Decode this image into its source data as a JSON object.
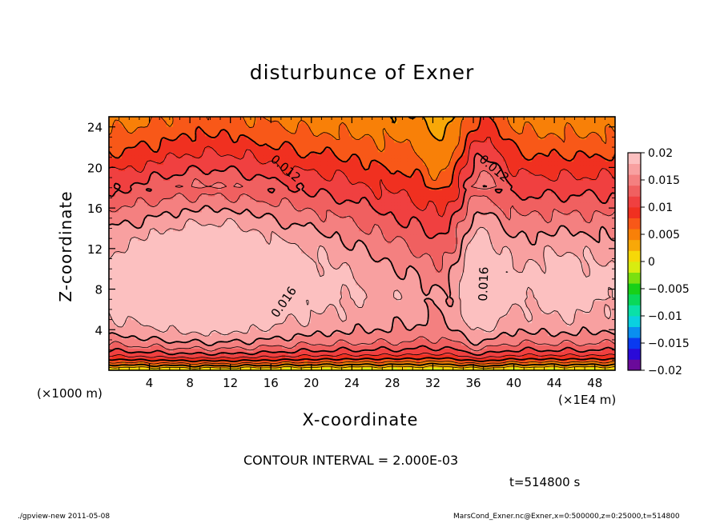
{
  "chart_data": {
    "type": "heatmap",
    "title": "disturbunce of Exner",
    "xlabel": "X-coordinate",
    "ylabel": "Z-coordinate",
    "x_unit_label": "(×1000 m)",
    "x_scale_label": "(×1E4 m)",
    "xlim": [
      0,
      50
    ],
    "ylim": [
      0,
      25
    ],
    "x_ticks": [
      4,
      8,
      12,
      16,
      20,
      24,
      28,
      32,
      36,
      40,
      44,
      48
    ],
    "x_tick_labels": [
      "4",
      "8",
      "12",
      "16",
      "20",
      "24",
      "28",
      "32",
      "36",
      "40",
      "44",
      "48"
    ],
    "y_ticks": [
      4,
      8,
      12,
      16,
      20,
      24
    ],
    "y_tick_labels": [
      "4",
      "8",
      "12",
      "16",
      "20",
      "24"
    ],
    "colorbar": {
      "min": -0.02,
      "max": 0.02,
      "tick_values": [
        0.02,
        0.015,
        0.01,
        0.005,
        0,
        -0.005,
        -0.01,
        -0.015,
        -0.02
      ],
      "tick_labels": [
        "0.02",
        "0.015",
        "0.01",
        "0.005",
        "0",
        "−0.005",
        "−0.01",
        "−0.015",
        "−0.02"
      ],
      "colors": [
        "#6a0a9a",
        "#2a0ad8",
        "#0a3af0",
        "#0a8ef0",
        "#0ad0e0",
        "#0ae0a8",
        "#0ad85a",
        "#18d018",
        "#7ae010",
        "#d8ec10",
        "#f6d808",
        "#f8a808",
        "#f88008",
        "#f85818",
        "#f03020",
        "#f04040",
        "#f06060",
        "#f48080",
        "#f8a0a0",
        "#fcc0c0"
      ]
    },
    "contour_interval": 0.002,
    "contour_labels": [
      {
        "text": "0.012",
        "x": 17.2,
        "y": 19.6
      },
      {
        "text": "0.012",
        "x": 37.8,
        "y": 19.6
      },
      {
        "text": "0.016",
        "x": 17.6,
        "y": 6.5
      },
      {
        "text": "0.016",
        "x": 37.4,
        "y": 8.5
      }
    ],
    "field_description": {
      "max_value": 0.0195,
      "max_region": "z 6-10 between x 2 and 17, and near x 36-37",
      "low_region": "surface (z < 2) and top (z > 23)",
      "min_value": 0.0
    }
  },
  "annotations": {
    "contour_interval_text": "CONTOUR INTERVAL = 2.000E-03",
    "time_text": "t=514800 s",
    "footer_left": "./gpview-new   2011-05-08",
    "footer_right": "MarsCond_Exner.nc@Exner,x=0:500000,z=0:25000,t=514800"
  }
}
